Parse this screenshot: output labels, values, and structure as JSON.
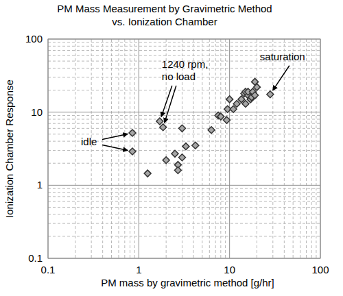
{
  "chart_data": {
    "type": "scatter",
    "title": "PM Mass Measurement by Gravimetric Method\nvs. Ionization Chamber",
    "x_label": "PM mass by gravimetric method [g/hr]",
    "y_label": "Ionization Chamber Response",
    "x": [
      0.85,
      0.85,
      1.7,
      1.85,
      1.25,
      2.0,
      2.5,
      2.7,
      2.7,
      3.0,
      3.0,
      3.3,
      4.2,
      6.3,
      7.5,
      8.0,
      9.3,
      9.5,
      10,
      11,
      12,
      13.5,
      14.5,
      15,
      15,
      16,
      16,
      17,
      17.5,
      18,
      19,
      20,
      19,
      28
    ],
    "values": [
      5.2,
      2.9,
      7.5,
      6.2,
      1.45,
      2.2,
      2.7,
      1.9,
      1.6,
      2.4,
      6.0,
      3.4,
      3.5,
      5.7,
      9.0,
      8.7,
      7.8,
      11.0,
      15,
      11,
      13,
      15,
      18,
      19,
      13,
      17,
      19,
      15,
      16,
      19,
      26,
      22,
      17,
      17.5
    ],
    "color": "#a6a6a6",
    "marker": "diamond",
    "log": true,
    "grid": true,
    "xlim": [
      0.1,
      100
    ],
    "ylim": [
      0.1,
      100
    ],
    "xticks": [
      0.1,
      1,
      10,
      100
    ],
    "yticks": [
      0.1,
      1,
      10,
      100
    ],
    "annotations": [
      "idle",
      "1240 rpm,\nno load",
      "saturation"
    ]
  }
}
